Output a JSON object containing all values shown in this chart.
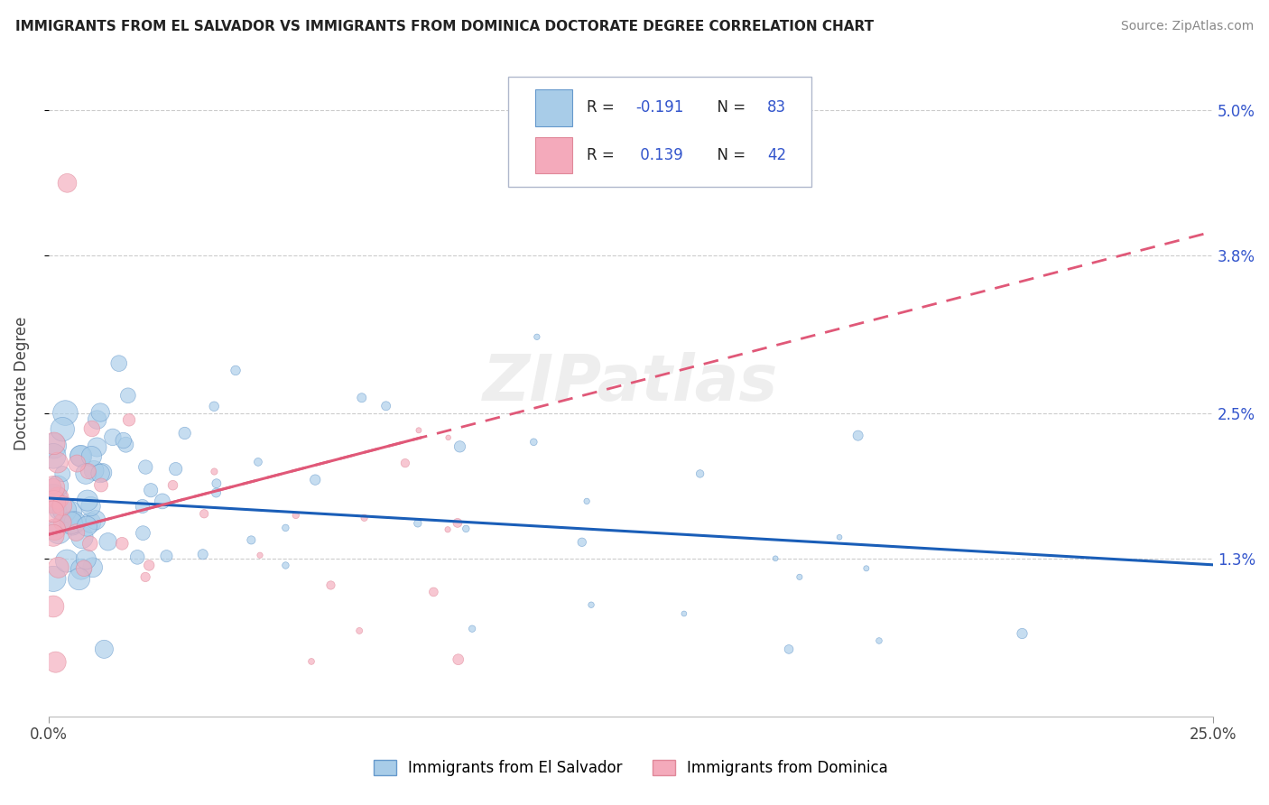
{
  "title": "IMMIGRANTS FROM EL SALVADOR VS IMMIGRANTS FROM DOMINICA DOCTORATE DEGREE CORRELATION CHART",
  "source": "Source: ZipAtlas.com",
  "ylabel": "Doctorate Degree",
  "ytick_vals": [
    0.013,
    0.025,
    0.038,
    0.05
  ],
  "ytick_labels": [
    "1.3%",
    "2.5%",
    "3.8%",
    "5.0%"
  ],
  "xlim": [
    0.0,
    0.25
  ],
  "ylim": [
    0.0,
    0.055
  ],
  "legend_label1": "Immigrants from El Salvador",
  "legend_label2": "Immigrants from Dominica",
  "color_blue": "#a8cce8",
  "color_pink": "#f4aabb",
  "color_blue_edge": "#6699cc",
  "color_pink_edge": "#e08899",
  "color_blue_line": "#1a5eb8",
  "color_pink_line": "#e05878",
  "watermark": "ZIPatlas",
  "r_color": "#3355cc",
  "n_color": "#3355cc"
}
